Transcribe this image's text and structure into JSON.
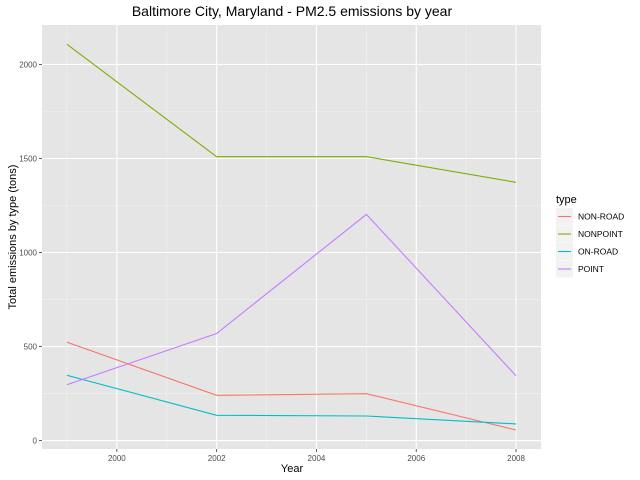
{
  "chart_data": {
    "type": "line",
    "title": "Baltimore City, Maryland - PM2.5 emissions by year",
    "xlabel": "Year",
    "ylabel": "Total emissions by type (tons)",
    "x": [
      1999,
      2002,
      2005,
      2008
    ],
    "xlim": [
      1998.5,
      2008.5
    ],
    "ylim": [
      -45,
      2210
    ],
    "xticks": [
      2000,
      2002,
      2004,
      2006,
      2008
    ],
    "yticks": [
      0,
      500,
      1000,
      1500,
      2000
    ],
    "grid": true,
    "legend": {
      "title": "type",
      "position": "right"
    },
    "series": [
      {
        "name": "NON-ROAD",
        "color": "#F8766D",
        "values": [
          522.9,
          240.8,
          248.9,
          55.8
        ]
      },
      {
        "name": "NONPOINT",
        "color": "#7CAE00",
        "values": [
          2107.6,
          1509.5,
          1509.5,
          1373.2
        ]
      },
      {
        "name": "ON-ROAD",
        "color": "#00BFC4",
        "values": [
          346.8,
          134.3,
          130.4,
          88.3
        ]
      },
      {
        "name": "POINT",
        "color": "#C77CFF",
        "values": [
          296.8,
          569.3,
          1202.5,
          344.98
        ]
      }
    ]
  }
}
